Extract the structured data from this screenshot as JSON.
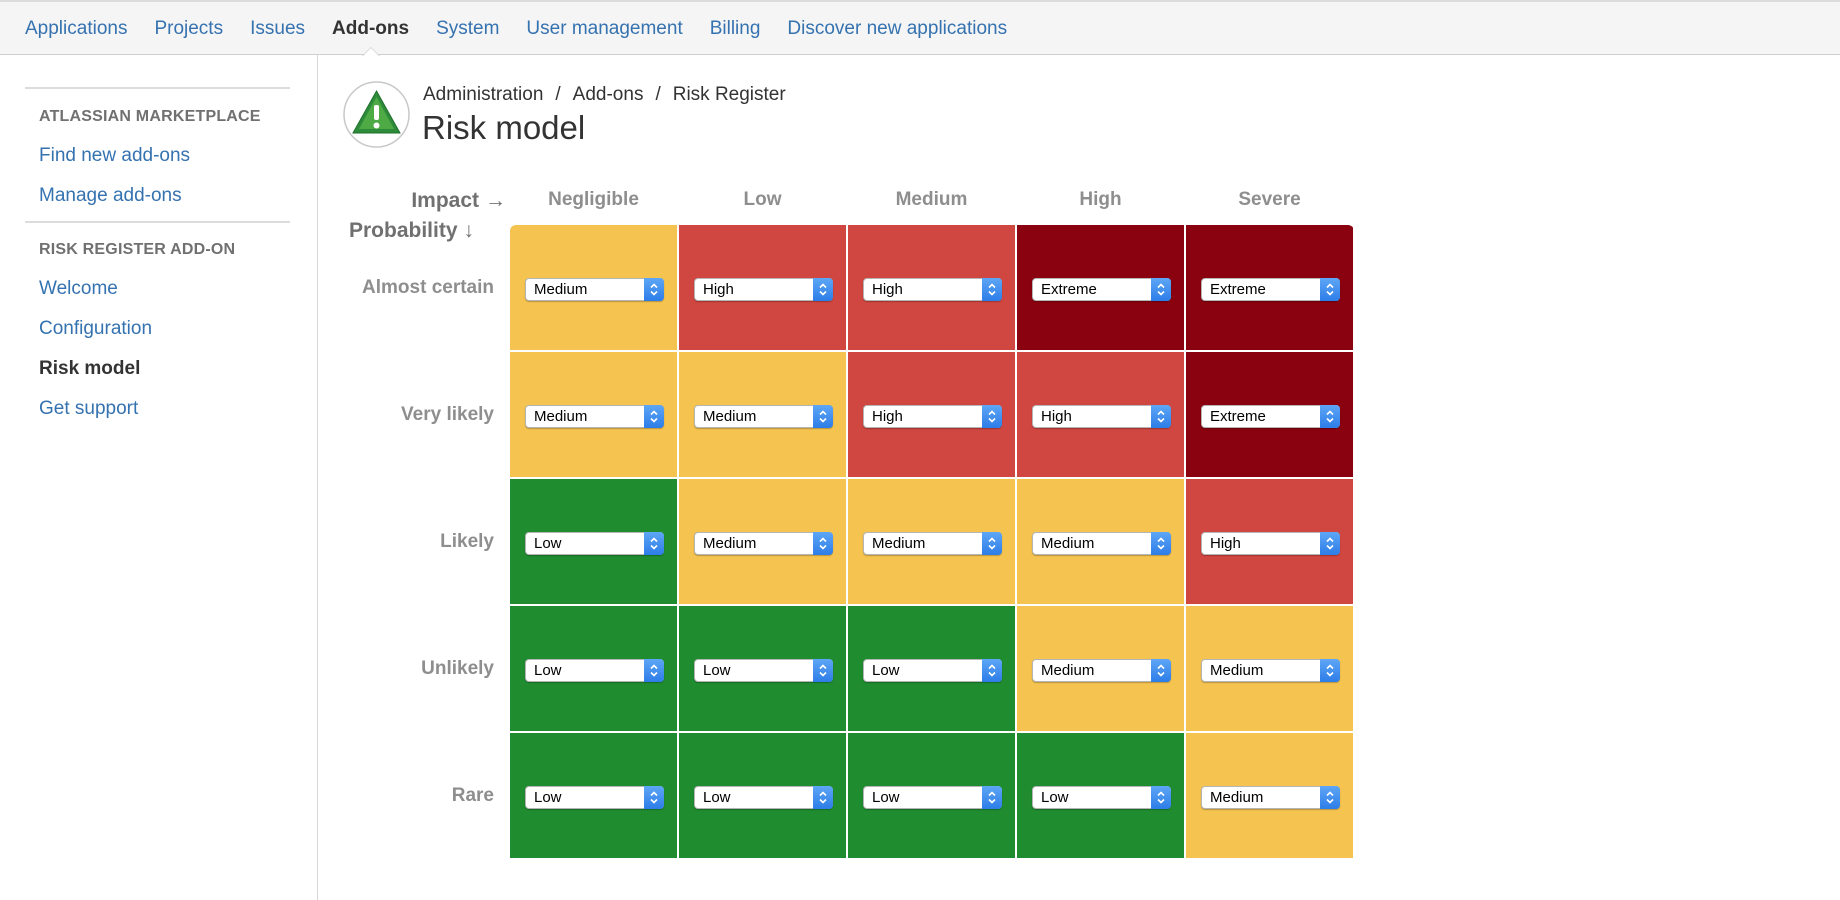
{
  "topnav": {
    "items": [
      {
        "label": "Applications",
        "active": false
      },
      {
        "label": "Projects",
        "active": false
      },
      {
        "label": "Issues",
        "active": false
      },
      {
        "label": "Add-ons",
        "active": true
      },
      {
        "label": "System",
        "active": false
      },
      {
        "label": "User management",
        "active": false
      },
      {
        "label": "Billing",
        "active": false
      },
      {
        "label": "Discover new applications",
        "active": false
      }
    ]
  },
  "sidebar": {
    "sections": [
      {
        "heading": "ATLASSIAN MARKETPLACE",
        "items": [
          {
            "label": "Find new add-ons"
          },
          {
            "label": "Manage add-ons"
          }
        ]
      },
      {
        "heading": "RISK REGISTER ADD-ON",
        "items": [
          {
            "label": "Welcome"
          },
          {
            "label": "Configuration"
          },
          {
            "label": "Risk model",
            "current": true
          },
          {
            "label": "Get support"
          }
        ]
      }
    ]
  },
  "header": {
    "breadcrumb": [
      "Administration",
      "Add-ons",
      "Risk Register"
    ],
    "breadcrumb_separator": "/",
    "title": "Risk model",
    "logo_icon": "warning-triangle-icon"
  },
  "matrix": {
    "impact_label": "Impact",
    "impact_arrow": "→",
    "probability_label": "Probability",
    "probability_arrow": "↓",
    "impact_levels": [
      "Negligible",
      "Low",
      "Medium",
      "High",
      "Severe"
    ],
    "probability_levels": [
      "Almost certain",
      "Very likely",
      "Likely",
      "Unlikely",
      "Rare"
    ],
    "cells": [
      [
        "Medium",
        "High",
        "High",
        "Extreme",
        "Extreme"
      ],
      [
        "Medium",
        "Medium",
        "High",
        "High",
        "Extreme"
      ],
      [
        "Low",
        "Medium",
        "Medium",
        "Medium",
        "High"
      ],
      [
        "Low",
        "Low",
        "Low",
        "Medium",
        "Medium"
      ],
      [
        "Low",
        "Low",
        "Low",
        "Low",
        "Medium"
      ]
    ],
    "colors": {
      "Low": "#1f8c30",
      "Medium": "#f5c350",
      "High": "#d04640",
      "Extreme": "#8a0210"
    }
  }
}
